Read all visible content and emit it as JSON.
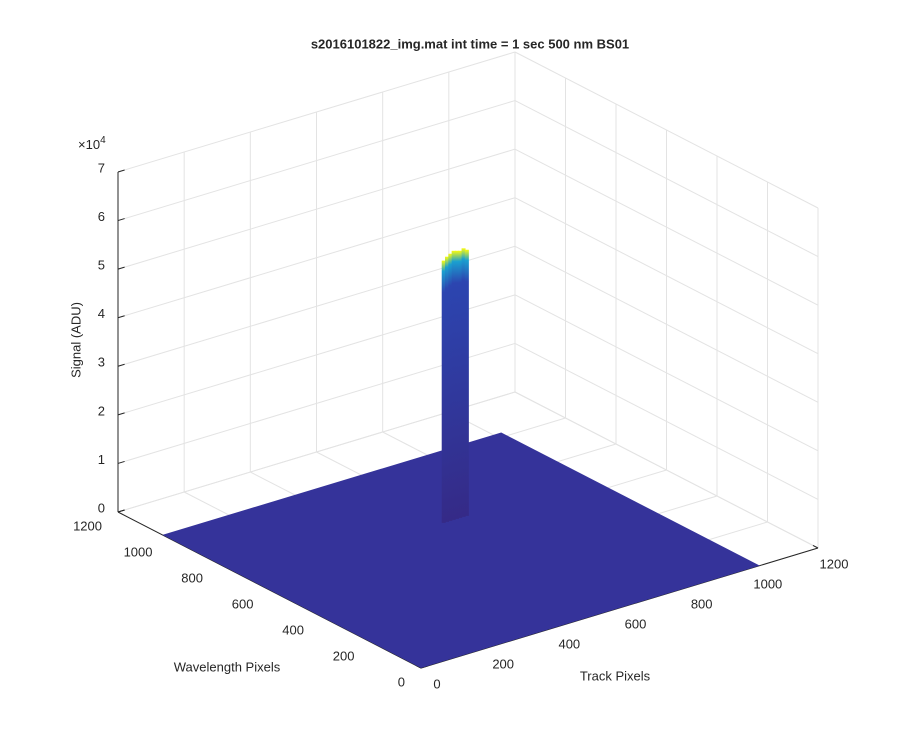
{
  "chart_data": {
    "type": "surface",
    "title": "s2016101822_img.mat int time = 1 sec  500 nm BS01",
    "xlabel": "Track Pixels",
    "ylabel": "Wavelength Pixels",
    "zlabel": "Signal (ADU)",
    "z_multiplier": "×10",
    "z_multiplier_power": "4",
    "xlim": [
      0,
      1200
    ],
    "ylim": [
      0,
      1200
    ],
    "zlim": [
      0,
      70000
    ],
    "xticks": [
      0,
      200,
      400,
      600,
      800,
      1000,
      1200
    ],
    "yticks": [
      0,
      200,
      400,
      600,
      800,
      1000,
      1200
    ],
    "zticks": [
      {
        "value": 0,
        "label": "0"
      },
      {
        "value": 10000,
        "label": "1"
      },
      {
        "value": 20000,
        "label": "2"
      },
      {
        "value": 30000,
        "label": "3"
      },
      {
        "value": 40000,
        "label": "4"
      },
      {
        "value": 50000,
        "label": "5"
      },
      {
        "value": 60000,
        "label": "6"
      },
      {
        "value": 70000,
        "label": "7"
      }
    ],
    "grid": true,
    "surface": {
      "x_extent": [
        0,
        1024
      ],
      "y_extent": [
        0,
        1024
      ],
      "base_value": 0,
      "color": "#35339a"
    },
    "peaks": {
      "x": [
        580,
        590,
        600,
        610,
        620,
        630,
        640,
        650
      ],
      "y": [
        670,
        670,
        670,
        670,
        670,
        670,
        670,
        670
      ],
      "z": [
        54000,
        54600,
        55000,
        55400,
        55200,
        55000,
        55300,
        54800
      ]
    },
    "colormap": [
      "#f9fb0e",
      "#1aa0d0",
      "#2c45b0",
      "#352a87"
    ]
  }
}
